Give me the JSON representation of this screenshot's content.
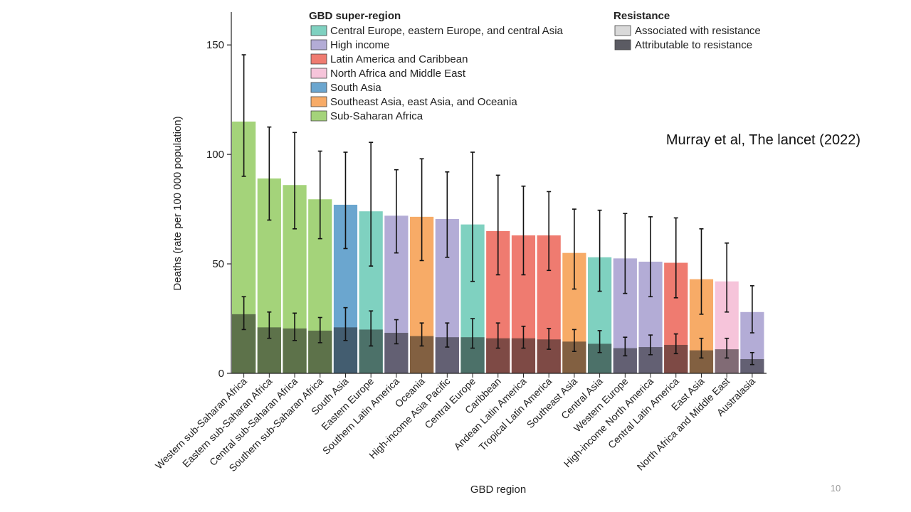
{
  "slide": {
    "citation": "Murray et al, The lancet (2022)",
    "page_number": "10"
  },
  "legend": {
    "super_region_title": "GBD super-region",
    "resistance_title": "Resistance",
    "super_regions": [
      {
        "key": "ceca",
        "label": "Central Europe, eastern Europe, and central Asia",
        "color": "#7fd1c0"
      },
      {
        "key": "hi",
        "label": "High income",
        "color": "#b3acd6"
      },
      {
        "key": "lac",
        "label": "Latin America and Caribbean",
        "color": "#ef7b70"
      },
      {
        "key": "nafme",
        "label": "North Africa and Middle East",
        "color": "#f6c4da"
      },
      {
        "key": "sa",
        "label": "South Asia",
        "color": "#6ba6cf"
      },
      {
        "key": "seao",
        "label": "Southeast Asia, east Asia, and Oceania",
        "color": "#f7ab67"
      },
      {
        "key": "ssa",
        "label": "Sub-Saharan Africa",
        "color": "#a4d37a"
      }
    ],
    "resistance": [
      {
        "label": "Associated with resistance",
        "color": "#d9d9d9"
      },
      {
        "label": "Attributable to resistance",
        "color": "#5b5b63"
      }
    ]
  },
  "chart_data": {
    "type": "bar",
    "title": "",
    "xlabel": "GBD region",
    "ylabel": "Deaths (rate per 100 000 population)",
    "ylim": [
      0,
      165
    ],
    "yticks": [
      0,
      50,
      100,
      150
    ],
    "categories": [
      "Western sub-Saharan Africa",
      "Eastern sub-Saharan Africa",
      "Central sub-Saharan Africa",
      "Southern sub-Saharan Africa",
      "South Asia",
      "Eastern Europe",
      "Southern Latin America",
      "Oceania",
      "High-income Asia Pacific",
      "Central Europe",
      "Caribbean",
      "Andean Latin America",
      "Tropical Latin America",
      "Southeast Asia",
      "Central Asia",
      "Western Europe",
      "High-income North America",
      "Central Latin America",
      "East Asia",
      "North Africa and Middle East",
      "Australasia"
    ],
    "super_region": [
      "ssa",
      "ssa",
      "ssa",
      "ssa",
      "sa",
      "ceca",
      "hi",
      "seao",
      "hi",
      "ceca",
      "lac",
      "lac",
      "lac",
      "seao",
      "ceca",
      "hi",
      "hi",
      "lac",
      "seao",
      "nafme",
      "hi"
    ],
    "series": [
      {
        "name": "Associated with resistance",
        "values": [
          115,
          89,
          86,
          79.5,
          77,
          74,
          72,
          71.5,
          70.5,
          68,
          65,
          63,
          63,
          55,
          53,
          52.5,
          51,
          50.5,
          43,
          42,
          28
        ],
        "lower": [
          90,
          70,
          66,
          61.5,
          57,
          49,
          55,
          51.5,
          53,
          42,
          45,
          45,
          47,
          38.5,
          37.5,
          36.5,
          35,
          34.5,
          27,
          28,
          18.5
        ],
        "upper": [
          145.5,
          112.5,
          110,
          101.5,
          101,
          105.5,
          93,
          98,
          92,
          101,
          90.5,
          85.5,
          83,
          75,
          74.5,
          73,
          71.5,
          71,
          66,
          59.5,
          40
        ]
      },
      {
        "name": "Attributable to resistance",
        "values": [
          27,
          21,
          20.5,
          19.5,
          21,
          20,
          18.5,
          17,
          16.5,
          16.5,
          16,
          16,
          15.5,
          14.5,
          13.5,
          11.5,
          12,
          13,
          10.5,
          11,
          6.5
        ],
        "lower": [
          20,
          16,
          15,
          14,
          15,
          12.5,
          13.5,
          12.5,
          12,
          11.5,
          11.5,
          11.5,
          11,
          10,
          9.5,
          8,
          8.5,
          9,
          7,
          7,
          4
        ],
        "upper": [
          35,
          28,
          27.5,
          25.5,
          30,
          28.5,
          24.5,
          23,
          23,
          25,
          23,
          21.5,
          20.5,
          20,
          19.5,
          16.5,
          17.5,
          18,
          16,
          16,
          9.5
        ]
      }
    ]
  }
}
